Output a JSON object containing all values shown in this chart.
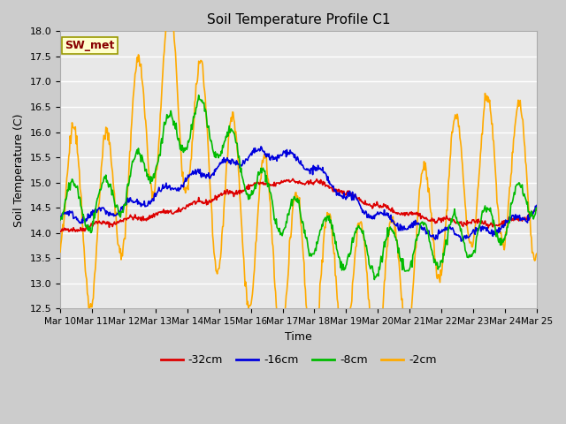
{
  "title": "Soil Temperature Profile C1",
  "xlabel": "Time",
  "ylabel": "Soil Temperature (C)",
  "ylim": [
    12.5,
    18.0
  ],
  "bg_color": "#cccccc",
  "plot_bg": "#e8e8e8",
  "legend_label": "SW_met",
  "legend_box_color": "#ffffcc",
  "legend_box_edge": "#999900",
  "series_labels": [
    "-32cm",
    "-16cm",
    "-8cm",
    "-2cm"
  ],
  "series_colors": [
    "#dd0000",
    "#0000dd",
    "#00bb00",
    "#ffaa00"
  ],
  "xtick_labels": [
    "Mar 10",
    "Mar 11",
    "Mar 12",
    "Mar 13",
    "Mar 14",
    "Mar 15",
    "Mar 16",
    "Mar 17",
    "Mar 18",
    "Mar 19",
    "Mar 20",
    "Mar 21",
    "Mar 22",
    "Mar 23",
    "Mar 24",
    "Mar 25"
  ],
  "ytick_values": [
    12.5,
    13.0,
    13.5,
    14.0,
    14.5,
    15.0,
    15.5,
    16.0,
    16.5,
    17.0,
    17.5,
    18.0
  ],
  "n_days": 15,
  "pts_per_day": 48
}
